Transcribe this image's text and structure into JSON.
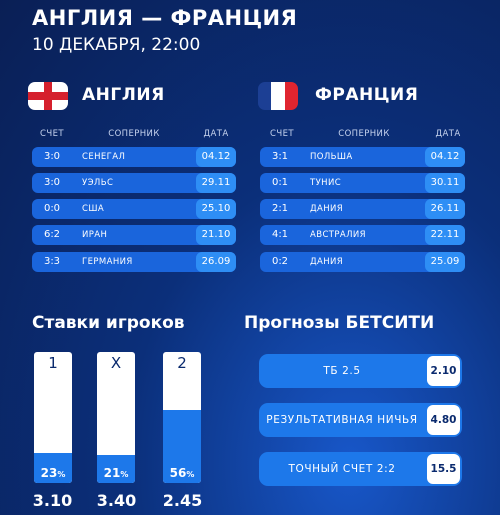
{
  "header": {
    "title": "АНГЛИЯ — ФРАНЦИЯ",
    "datetime": "10 ДЕКАБРЯ, 22:00"
  },
  "columns": {
    "score": "СЧЕТ",
    "opponent": "СОПЕРНИК",
    "date": "ДАТА"
  },
  "teams": [
    {
      "name": "АНГЛИЯ",
      "flag": "england-flag-icon",
      "matches": [
        {
          "score": "3:0",
          "opponent": "СЕНЕГАЛ",
          "date": "04.12"
        },
        {
          "score": "3:0",
          "opponent": "УЭЛЬС",
          "date": "29.11"
        },
        {
          "score": "0:0",
          "opponent": "США",
          "date": "25.10"
        },
        {
          "score": "6:2",
          "opponent": "ИРАН",
          "date": "21.10"
        },
        {
          "score": "3:3",
          "opponent": "ГЕРМАНИЯ",
          "date": "26.09"
        }
      ]
    },
    {
      "name": "ФРАНЦИЯ",
      "flag": "france-flag-icon",
      "matches": [
        {
          "score": "3:1",
          "opponent": "ПОЛЬША",
          "date": "04.12"
        },
        {
          "score": "0:1",
          "opponent": "ТУНИС",
          "date": "30.11"
        },
        {
          "score": "2:1",
          "opponent": "ДАНИЯ",
          "date": "26.11"
        },
        {
          "score": "4:1",
          "opponent": "АВСТРАЛИЯ",
          "date": "22.11"
        },
        {
          "score": "0:2",
          "opponent": "ДАНИЯ",
          "date": "25.09"
        }
      ]
    }
  ],
  "player_bets": {
    "title": "Ставки игроков",
    "bars": [
      {
        "outcome": "1",
        "percent": 23,
        "percent_label": "23",
        "odds": "3.10"
      },
      {
        "outcome": "X",
        "percent": 21,
        "percent_label": "21",
        "odds": "3.40"
      },
      {
        "outcome": "2",
        "percent": 56,
        "percent_label": "56",
        "odds": "2.45"
      }
    ],
    "percent_sign": "%"
  },
  "predictions": {
    "title": "Прогнозы БЕТСИТИ",
    "items": [
      {
        "label": "ТБ 2.5",
        "odds": "2.10"
      },
      {
        "label": "РЕЗУЛЬТАТИВНАЯ НИЧЬЯ",
        "odds": "4.80"
      },
      {
        "label": "ТОЧНЫЙ СЧЕТ 2:2",
        "odds": "15.5"
      }
    ]
  },
  "colors": {
    "background": "#0b2f7a",
    "row": "#1a65dc",
    "date_pill": "#2e8ef5",
    "bar_fill": "#1d78ea",
    "england_red": "#d5202d",
    "france_blue": "#1c3f94",
    "france_red": "#e0252f"
  }
}
